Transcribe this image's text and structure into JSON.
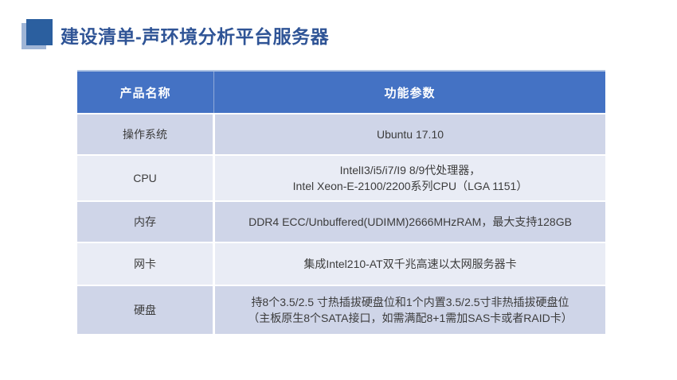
{
  "slide": {
    "background": "#FFFFFF"
  },
  "title": {
    "text": "建设清单-声环境分析平台服务器",
    "color": "#2F5496",
    "icon": "double-square-bullet",
    "icon_colors": {
      "front": "#2B5F9F",
      "back": "#9FB5D6"
    }
  },
  "table": {
    "columns": [
      "产品名称",
      "功能参数"
    ],
    "header_bg": "#4472C4",
    "header_text_color": "#FFFFFF",
    "band_colors": {
      "odd": "#CFD5E8",
      "even": "#E9ECF5"
    },
    "rows": [
      {
        "name": "操作系统",
        "value": "Ubuntu 17.10"
      },
      {
        "name": "CPU",
        "value": "IntelI3/i5/i7/I9 8/9代处理器，\nIntel Xeon-E-2100/2200系列CPU（LGA 1151）"
      },
      {
        "name": "内存",
        "value": "DDR4 ECC/Unbuffered(UDIMM)2666MHzRAM，最大支持128GB"
      },
      {
        "name": "网卡",
        "value": "集成Intel210-AT双千兆高速以太网服务器卡"
      },
      {
        "name": "硬盘",
        "value": "持8个3.5/2.5 寸热插拔硬盘位和1个内置3.5/2.5寸非热插拔硬盘位\n（主板原生8个SATA接口，如需满配8+1需加SAS卡或者RAID卡）"
      }
    ]
  }
}
